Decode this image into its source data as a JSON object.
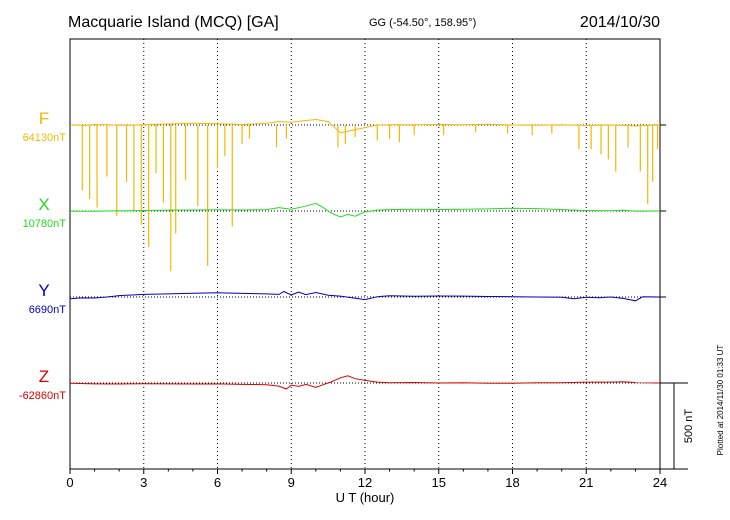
{
  "header": {
    "station": "Macquarie Island (MCQ)  [GA]",
    "coords": "GG (-54.50°, 158.95°)",
    "date": "2014/10/30"
  },
  "side_note": "Plotted at 2014/11/30 01:33 UT",
  "chart_data": {
    "type": "line",
    "xlabel": "U T (hour)",
    "xlim": [
      0,
      24
    ],
    "xticks": [
      0,
      3,
      6,
      9,
      12,
      15,
      18,
      21,
      24
    ],
    "scale_bar": {
      "label": "500 nT",
      "value_nT": 500
    },
    "series": [
      {
        "name": "F",
        "baseline_label": "64130nT",
        "color": "#f5b800",
        "baseline_nT": 64130,
        "points": [
          [
            0,
            64128
          ],
          [
            0.3,
            64130
          ],
          [
            0.6,
            64127
          ],
          [
            1,
            64133
          ],
          [
            1.5,
            64131
          ],
          [
            2,
            64129
          ],
          [
            2.5,
            64128
          ],
          [
            3,
            64131
          ],
          [
            3.5,
            64134
          ],
          [
            4,
            64136
          ],
          [
            4.5,
            64138
          ],
          [
            5,
            64140
          ],
          [
            5.5,
            64139
          ],
          [
            6,
            64137
          ],
          [
            6.5,
            64135
          ],
          [
            7,
            64133
          ],
          [
            7.5,
            64136
          ],
          [
            8,
            64140
          ],
          [
            8.5,
            64150
          ],
          [
            9,
            64146
          ],
          [
            9.5,
            64155
          ],
          [
            10,
            64162
          ],
          [
            10.5,
            64150
          ],
          [
            11,
            64085
          ],
          [
            11.5,
            64100
          ],
          [
            12,
            64115
          ],
          [
            12.5,
            64130
          ],
          [
            13,
            64132
          ],
          [
            14,
            64131
          ],
          [
            15,
            64133
          ],
          [
            16,
            64132
          ],
          [
            17,
            64134
          ],
          [
            18,
            64130
          ],
          [
            19,
            64128
          ],
          [
            20,
            64131
          ],
          [
            21,
            64127
          ],
          [
            22,
            64130
          ],
          [
            23,
            64125
          ],
          [
            24,
            64130
          ]
        ],
        "spikes": [
          [
            0.5,
            63750
          ],
          [
            0.8,
            63700
          ],
          [
            1.1,
            63650
          ],
          [
            1.5,
            63830
          ],
          [
            1.9,
            63600
          ],
          [
            2.3,
            63800
          ],
          [
            2.6,
            63630
          ],
          [
            2.9,
            63550
          ],
          [
            3.2,
            63420
          ],
          [
            3.5,
            63850
          ],
          [
            3.8,
            63680
          ],
          [
            4.1,
            63280
          ],
          [
            4.3,
            63500
          ],
          [
            4.7,
            63810
          ],
          [
            5.2,
            63660
          ],
          [
            5.6,
            63310
          ],
          [
            6.0,
            63880
          ],
          [
            6.3,
            63950
          ],
          [
            6.6,
            63540
          ],
          [
            7.0,
            64020
          ],
          [
            7.3,
            64050
          ],
          [
            8.4,
            64000
          ],
          [
            8.8,
            64050
          ],
          [
            10.9,
            64000
          ],
          [
            11.2,
            64020
          ],
          [
            11.6,
            64060
          ],
          [
            12.5,
            64040
          ],
          [
            13.0,
            64050
          ],
          [
            13.4,
            64030
          ],
          [
            14.0,
            64070
          ],
          [
            15.2,
            64070
          ],
          [
            16.5,
            64090
          ],
          [
            17.8,
            64080
          ],
          [
            18.8,
            64070
          ],
          [
            19.6,
            64080
          ],
          [
            20.7,
            63990
          ],
          [
            21.2,
            63990
          ],
          [
            21.6,
            63960
          ],
          [
            21.9,
            63930
          ],
          [
            22.2,
            63860
          ],
          [
            22.7,
            64000
          ],
          [
            23.2,
            63860
          ],
          [
            23.5,
            63670
          ],
          [
            23.7,
            63800
          ],
          [
            23.9,
            63990
          ]
        ]
      },
      {
        "name": "X",
        "baseline_label": "10780nT",
        "color": "#22dd22",
        "baseline_nT": 10780,
        "points": [
          [
            0,
            10778
          ],
          [
            1,
            10779
          ],
          [
            2,
            10781
          ],
          [
            3,
            10783
          ],
          [
            4,
            10785
          ],
          [
            5,
            10786
          ],
          [
            6,
            10787
          ],
          [
            7,
            10786
          ],
          [
            8,
            10788
          ],
          [
            8.5,
            10800
          ],
          [
            9,
            10790
          ],
          [
            9.5,
            10805
          ],
          [
            10,
            10825
          ],
          [
            10.3,
            10800
          ],
          [
            10.6,
            10770
          ],
          [
            11,
            10745
          ],
          [
            11.3,
            10760
          ],
          [
            11.6,
            10750
          ],
          [
            12,
            10775
          ],
          [
            12.5,
            10785
          ],
          [
            13,
            10788
          ],
          [
            14,
            10790
          ],
          [
            15,
            10789
          ],
          [
            16,
            10790
          ],
          [
            17,
            10792
          ],
          [
            18,
            10796
          ],
          [
            19,
            10794
          ],
          [
            20,
            10788
          ],
          [
            21,
            10783
          ],
          [
            22,
            10781
          ],
          [
            22.5,
            10785
          ],
          [
            23,
            10779
          ],
          [
            24,
            10780
          ]
        ]
      },
      {
        "name": "Y",
        "baseline_label": "6690nT",
        "color": "#0000cc",
        "baseline_nT": 6690,
        "points": [
          [
            0,
            6680
          ],
          [
            0.5,
            6685
          ],
          [
            1,
            6684
          ],
          [
            1.5,
            6690
          ],
          [
            2,
            6698
          ],
          [
            3,
            6705
          ],
          [
            4,
            6708
          ],
          [
            5,
            6712
          ],
          [
            6,
            6715
          ],
          [
            7,
            6711
          ],
          [
            8,
            6708
          ],
          [
            8.5,
            6705
          ],
          [
            8.7,
            6722
          ],
          [
            9,
            6702
          ],
          [
            9.3,
            6718
          ],
          [
            9.6,
            6704
          ],
          [
            10,
            6716
          ],
          [
            10.5,
            6700
          ],
          [
            11,
            6695
          ],
          [
            11.5,
            6685
          ],
          [
            12,
            6675
          ],
          [
            12.5,
            6692
          ],
          [
            13,
            6697
          ],
          [
            14,
            6694
          ],
          [
            15,
            6696
          ],
          [
            16,
            6695
          ],
          [
            17,
            6693
          ],
          [
            18,
            6692
          ],
          [
            19,
            6690
          ],
          [
            20,
            6689
          ],
          [
            20.5,
            6680
          ],
          [
            21,
            6688
          ],
          [
            21.5,
            6686
          ],
          [
            22,
            6690
          ],
          [
            22.5,
            6682
          ],
          [
            23,
            6668
          ],
          [
            23.3,
            6692
          ],
          [
            24,
            6690
          ]
        ]
      },
      {
        "name": "Z",
        "baseline_label": "-62860nT",
        "color": "#dd0000",
        "baseline_nT": -62860,
        "points": [
          [
            0,
            -62862
          ],
          [
            1,
            -62865
          ],
          [
            2,
            -62866
          ],
          [
            3,
            -62864
          ],
          [
            4,
            -62865
          ],
          [
            5,
            -62866
          ],
          [
            6,
            -62865
          ],
          [
            7,
            -62868
          ],
          [
            8,
            -62870
          ],
          [
            8.5,
            -62878
          ],
          [
            8.8,
            -62895
          ],
          [
            9,
            -62872
          ],
          [
            9.3,
            -62880
          ],
          [
            9.6,
            -62868
          ],
          [
            10,
            -62885
          ],
          [
            10.3,
            -62870
          ],
          [
            10.6,
            -62855
          ],
          [
            11,
            -62830
          ],
          [
            11.3,
            -62818
          ],
          [
            11.6,
            -62835
          ],
          [
            12,
            -62845
          ],
          [
            12.5,
            -62855
          ],
          [
            13,
            -62858
          ],
          [
            14,
            -62857
          ],
          [
            15,
            -62860
          ],
          [
            16,
            -62858
          ],
          [
            17,
            -62861
          ],
          [
            18,
            -62862
          ],
          [
            19,
            -62859
          ],
          [
            20,
            -62858
          ],
          [
            21,
            -62855
          ],
          [
            22,
            -62855
          ],
          [
            22.5,
            -62853
          ],
          [
            23,
            -62857
          ],
          [
            24,
            -62860
          ]
        ]
      }
    ]
  }
}
